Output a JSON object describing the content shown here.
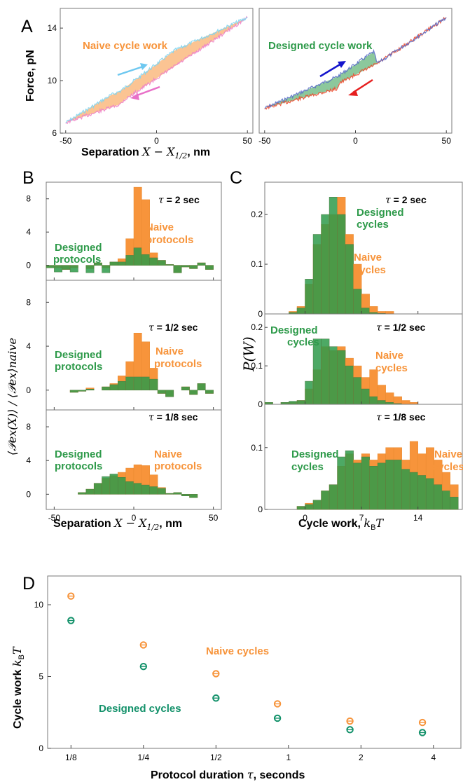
{
  "colors": {
    "naive": "#f7943b",
    "designed": "#2e9a4a",
    "designed_d": "#13916a",
    "naive_trace_light": "#ee82c8",
    "naive_trace_dark": "#7fd4f0",
    "designed_trace_red": "#ee4a2e",
    "designed_trace_blue": "#5a6ec8",
    "arrow_blue_light": "#6ec8f0",
    "arrow_pink": "#e870c8",
    "arrow_blue": "#1414cc",
    "arrow_red": "#e61e1e"
  },
  "labels": {
    "panel_a": "A",
    "panel_b": "B",
    "panel_c": "C",
    "panel_d": "D",
    "force_axis": "Force, pN",
    "sep_axis_prefix": "Separation ",
    "sep_axis_math": "X − X",
    "sep_axis_sub": "1/2",
    "sep_axis_suffix": ", nm",
    "naive_cycle_work": "Naive cycle work",
    "designed_cycle_work": "Designed cycle work",
    "b_ylabel": "⟨𝒫ex(X)⟩ / ⟨𝒫ex⟩naive",
    "c_ylabel": "P(W)",
    "c_xlabel_text": "Cycle work, ",
    "c_xlabel_math": "k",
    "c_xlabel_sub": "B",
    "c_xlabel_T": "T",
    "d_ylabel_text": "Cycle work ",
    "d_xlabel_text": "Protocol duration ",
    "d_xlabel_math": "τ",
    "d_xlabel_suffix": ", seconds",
    "tau_sym": "τ",
    "tau_rows": [
      " = 2 sec",
      " = 1/2 sec",
      " = 1/8 sec"
    ],
    "designed_protocols_1": "Designed",
    "designed_protocols_2": "protocols",
    "naive_protocols_1": "Naive",
    "naive_protocols_2": "protocols",
    "designed_cycles_1": "Designed",
    "designed_cycles_2": "cycles",
    "naive_cycles_1": "Naive",
    "naive_cycles_2": "cycles",
    "d_naive": "Naive cycles",
    "d_designed": "Designed cycles"
  },
  "chart_data": [
    {
      "id": "A-left",
      "type": "line",
      "title": "Naive cycle work",
      "xlabel": "Separation X − X1/2, nm",
      "ylabel": "Force, pN",
      "xlim": [
        -53,
        53
      ],
      "ylim": [
        6,
        15.5
      ],
      "xticks": [
        -50,
        0,
        50
      ],
      "yticks": [
        6,
        10,
        14
      ],
      "series": [
        {
          "x": [
            -50,
            -25,
            -20,
            10,
            50
          ],
          "y": [
            6.8,
            8.9,
            9.2,
            12.3,
            14.8
          ]
        },
        {
          "x": [
            -50,
            -20,
            -18,
            10,
            50
          ],
          "y": [
            6.8,
            8.2,
            8.5,
            11.1,
            14.8
          ]
        }
      ]
    },
    {
      "id": "A-right",
      "type": "line",
      "title": "Designed cycle work",
      "xlim": [
        -53,
        53
      ],
      "ylim": [
        6,
        15.5
      ],
      "xticks": [
        -50,
        0,
        50
      ],
      "series": [
        {
          "x": [
            -50,
            -10,
            10,
            12,
            50
          ],
          "y": [
            7.9,
            10.3,
            12.2,
            11.3,
            14.8
          ]
        },
        {
          "x": [
            -50,
            -10,
            -9,
            12,
            50
          ],
          "y": [
            7.9,
            9.4,
            9.8,
            11.3,
            14.8
          ]
        }
      ]
    },
    {
      "id": "B",
      "type": "bar",
      "xlabel": "Separation X − X1/2, nm",
      "ylabel": "⟨𝒫ex(X)⟩ / ⟨𝒫ex⟩naive",
      "xlim": [
        -55,
        55
      ],
      "ylim": [
        -1.8,
        10
      ],
      "xticks": [
        -50,
        0,
        50
      ],
      "yticks": [
        0,
        4,
        8
      ],
      "bin_edges": [
        -55,
        -50,
        -45,
        -40,
        -35,
        -30,
        -25,
        -20,
        -15,
        -10,
        -5,
        0,
        5,
        10,
        15,
        20,
        25,
        30,
        35,
        40,
        45,
        50
      ],
      "panels": [
        {
          "tau": "2 sec",
          "naive": [
            -0.3,
            -0.3,
            -0.5,
            -0.3,
            0,
            -0.4,
            0.3,
            -0.3,
            0.4,
            0.8,
            3.2,
            9.4,
            7.9,
            1.5,
            0.6,
            0.1,
            -0.9,
            -0.2,
            -0.4,
            0.3,
            -0.5
          ],
          "designed": [
            -0.3,
            -0.8,
            -0.5,
            -0.8,
            0,
            -0.9,
            0.3,
            -0.9,
            0.4,
            0.4,
            1.2,
            2.1,
            1.3,
            0.9,
            0.6,
            0.1,
            -0.9,
            -0.2,
            -0.4,
            0.3,
            -0.5
          ]
        },
        {
          "tau": "1/2 sec",
          "naive": [
            0,
            0,
            0,
            -0.2,
            -0.1,
            0.2,
            0,
            0.3,
            0.6,
            1.3,
            2.6,
            5.2,
            4.4,
            2.0,
            -0.3,
            -0.6,
            0,
            0.3,
            -0.4,
            0.6,
            -0.3
          ],
          "designed": [
            0,
            0,
            0,
            -0.2,
            -0.1,
            0.1,
            0,
            0.3,
            0.5,
            0.8,
            1.2,
            1.2,
            1.2,
            1.0,
            -0.3,
            -0.6,
            0,
            0.3,
            -0.4,
            0.6,
            -0.3
          ]
        },
        {
          "tau": "1/8 sec",
          "naive": [
            0,
            0,
            0,
            0,
            0.2,
            0.6,
            1.3,
            1.9,
            2.2,
            2.6,
            3.1,
            3.5,
            3.4,
            2.3,
            0.8,
            0.1,
            0.2,
            -0.2,
            -0.4,
            0,
            0
          ],
          "designed": [
            0,
            0,
            0,
            0,
            0.2,
            0.6,
            1.3,
            2.1,
            2.4,
            2.0,
            1.5,
            1.3,
            1.1,
            0.9,
            0.7,
            0.1,
            0.2,
            -0.2,
            -0.4,
            0,
            0
          ]
        }
      ]
    },
    {
      "id": "C",
      "type": "bar",
      "xlabel": "Cycle work, kBT",
      "ylabel": "P(W)",
      "xlim": [
        -5,
        19.5
      ],
      "xticks": [
        0,
        7,
        14
      ],
      "bin_width": 1,
      "panels": [
        {
          "tau": "2 sec",
          "ylim": [
            0,
            0.265
          ],
          "yticks": [
            0,
            0.1,
            0.2
          ],
          "start": -3,
          "naive": [
            0,
            0.005,
            0.015,
            0.06,
            0.14,
            0.18,
            0.2,
            0.235,
            0.16,
            0.1,
            0.04,
            0.015,
            0.005,
            0.005
          ],
          "designed": [
            0,
            0.003,
            0.012,
            0.07,
            0.16,
            0.2,
            0.235,
            0.2,
            0.14,
            0.05,
            0.012,
            0.003,
            0.001,
            0
          ]
        },
        {
          "tau": "1/2 sec",
          "ylim": [
            0,
            0.235
          ],
          "yticks": [
            0,
            0.1,
            0.2
          ],
          "start": -5,
          "naive": [
            0.005,
            0,
            0.005,
            0.005,
            0.01,
            0.04,
            0.09,
            0.15,
            0.14,
            0.15,
            0.12,
            0.1,
            0.07,
            0.09,
            0.05,
            0.03,
            0.02,
            0.01,
            0.005,
            0
          ],
          "designed": [
            0.005,
            0,
            0.005,
            0.008,
            0.01,
            0.06,
            0.17,
            0.17,
            0.15,
            0.14,
            0.1,
            0.07,
            0.04,
            0.02,
            0.01,
            0.005,
            0.002,
            0,
            0,
            0
          ]
        },
        {
          "tau": "1/8 sec",
          "ylim": [
            0,
            0.17
          ],
          "yticks": [
            0,
            0.1
          ],
          "start": -5,
          "naive": [
            0,
            0,
            0,
            0,
            0.005,
            0.01,
            0.015,
            0.03,
            0.04,
            0.07,
            0.09,
            0.08,
            0.09,
            0.08,
            0.09,
            0.1,
            0.1,
            0.08,
            0.11,
            0.09,
            0.1,
            0.08,
            0.06,
            0.04,
            0.03
          ],
          "designed": [
            0,
            0,
            0,
            0,
            0.005,
            0.008,
            0.015,
            0.03,
            0.04,
            0.085,
            0.095,
            0.075,
            0.085,
            0.07,
            0.075,
            0.08,
            0.08,
            0.065,
            0.06,
            0.055,
            0.05,
            0.04,
            0.03,
            0.02,
            0.015
          ]
        }
      ]
    },
    {
      "id": "D",
      "type": "scatter",
      "xlabel": "Protocol duration τ, seconds",
      "ylabel": "Cycle work kBT",
      "xscale": "log2",
      "xlim": [
        0.1,
        5.2
      ],
      "ylim": [
        0,
        12
      ],
      "xticks": [
        "1/8",
        "1/4",
        "1/2",
        "1",
        "2",
        "4"
      ],
      "yticks": [
        0,
        5,
        10
      ],
      "series": [
        {
          "name": "Naive cycles",
          "x": [
            0.125,
            0.25,
            0.5,
            0.9,
            1.8,
            3.6
          ],
          "y": [
            10.6,
            7.2,
            5.2,
            3.1,
            1.9,
            1.8
          ]
        },
        {
          "name": "Designed cycles",
          "x": [
            0.125,
            0.25,
            0.5,
            0.9,
            1.8,
            3.6
          ],
          "y": [
            8.9,
            5.7,
            3.5,
            2.1,
            1.3,
            1.1
          ]
        }
      ]
    }
  ]
}
